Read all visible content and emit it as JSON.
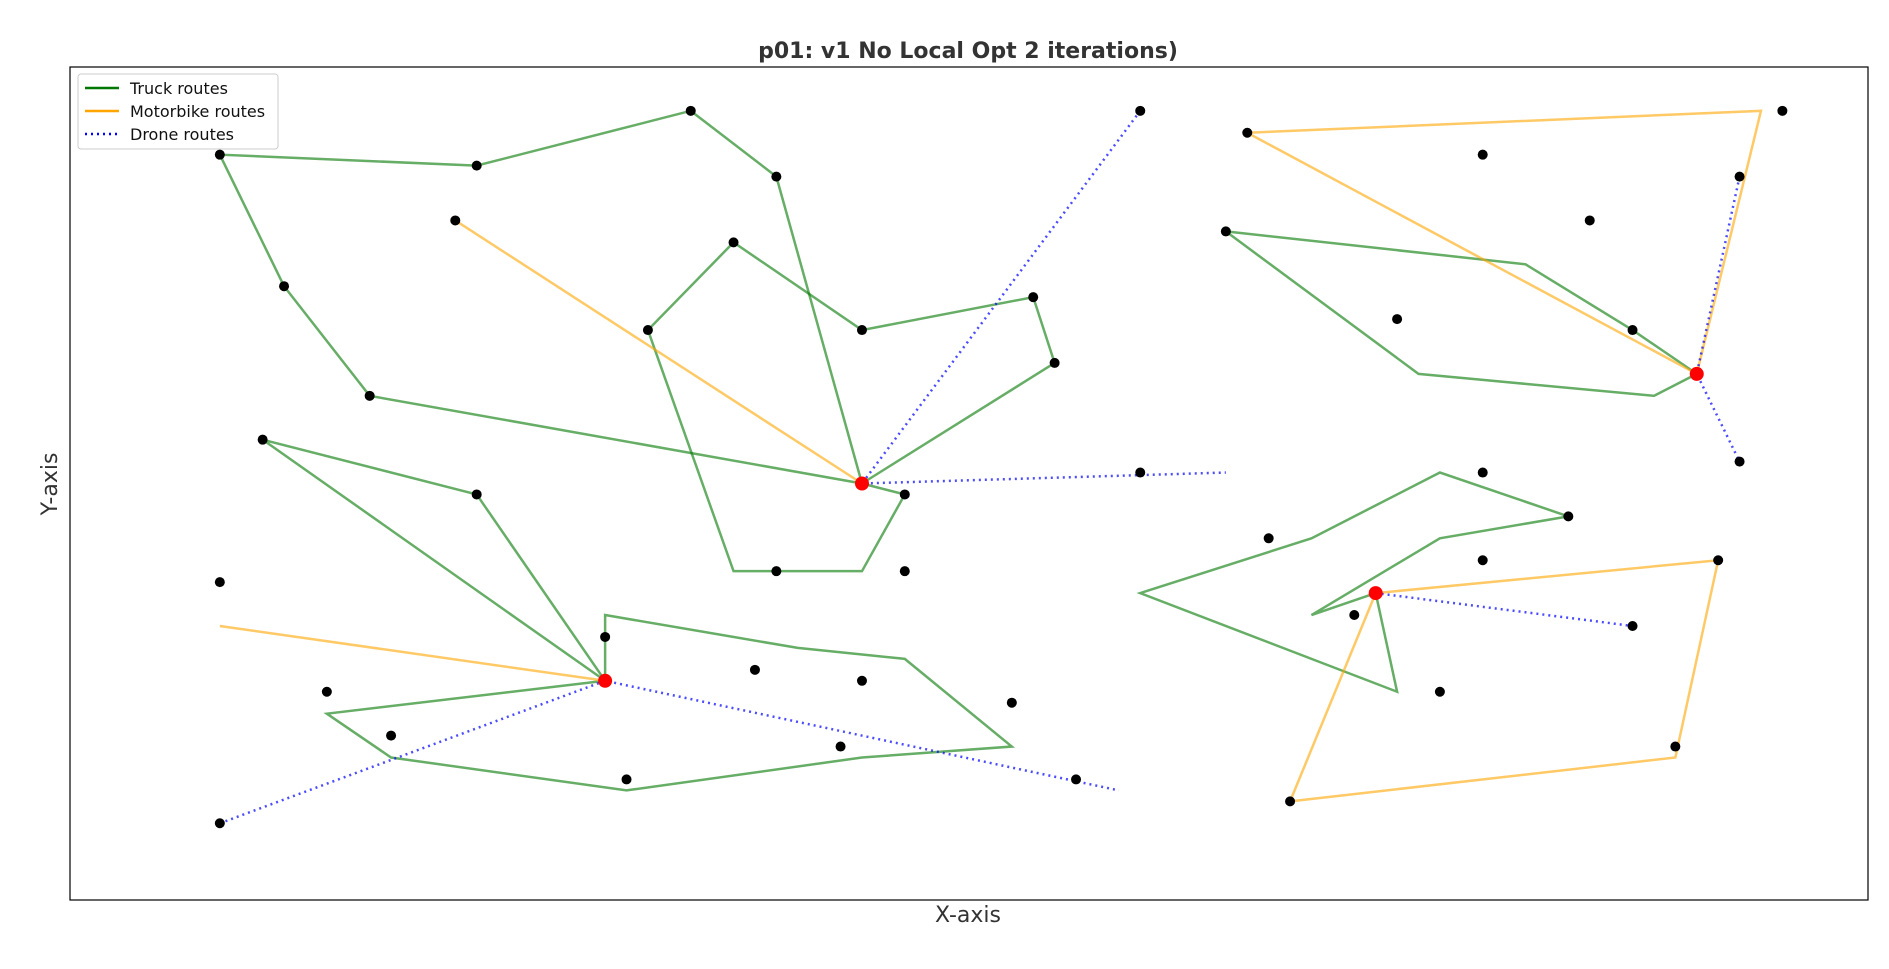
{
  "chart_data": {
    "type": "scatter",
    "title": "p01: v1 No Local Opt 2 iterations)",
    "xlabel": "X-axis",
    "ylabel": "Y-axis",
    "xlim": [
      -6,
      78
    ],
    "ylim": [
      -8,
      68
    ],
    "grid": false,
    "axis_ticks": false,
    "legend": {
      "placement": "top-left",
      "entries": [
        {
          "label": "Truck routes",
          "style": "solid",
          "color": "#007700"
        },
        {
          "label": "Motorbike routes",
          "style": "solid",
          "color": "#FFA500"
        },
        {
          "label": "Drone routes",
          "style": "dotted",
          "color": "#0000FF"
        }
      ]
    },
    "colors": {
      "truck": "#007700",
      "motorbike": "#FFA500",
      "drone": "#0000FF",
      "depot": "#FF0000",
      "customer": "#000000"
    },
    "depots": [
      [
        31,
        30
      ],
      [
        19,
        12
      ],
      [
        70,
        40
      ],
      [
        55,
        20
      ]
    ],
    "customers": [
      [
        1,
        60
      ],
      [
        13,
        59
      ],
      [
        23,
        64
      ],
      [
        27,
        58
      ],
      [
        4,
        48
      ],
      [
        8,
        38
      ],
      [
        12,
        54
      ],
      [
        25,
        52
      ],
      [
        21,
        44
      ],
      [
        31,
        44
      ],
      [
        39,
        47
      ],
      [
        40,
        41
      ],
      [
        33,
        29
      ],
      [
        27,
        22
      ],
      [
        33,
        22
      ],
      [
        44,
        64
      ],
      [
        3,
        34
      ],
      [
        13,
        29
      ],
      [
        1,
        21
      ],
      [
        19,
        16
      ],
      [
        26,
        13
      ],
      [
        31,
        12
      ],
      [
        38,
        10
      ],
      [
        30,
        6
      ],
      [
        20,
        3
      ],
      [
        9,
        7
      ],
      [
        6,
        11
      ],
      [
        1,
        -1
      ],
      [
        41,
        3
      ],
      [
        49,
        62
      ],
      [
        74,
        64
      ],
      [
        60,
        60
      ],
      [
        72,
        58
      ],
      [
        48,
        53
      ],
      [
        65,
        54
      ],
      [
        56,
        45
      ],
      [
        67,
        44
      ],
      [
        72,
        32
      ],
      [
        44,
        31
      ],
      [
        60,
        31
      ],
      [
        50,
        25
      ],
      [
        64,
        27
      ],
      [
        60,
        23
      ],
      [
        71,
        23
      ],
      [
        54,
        18
      ],
      [
        67,
        17
      ],
      [
        58,
        11
      ],
      [
        69,
        6
      ],
      [
        51,
        1
      ]
    ],
    "routes": [
      {
        "mode": "truck",
        "path": [
          [
            31,
            30
          ],
          [
            8,
            38
          ],
          [
            4,
            48
          ],
          [
            1,
            60
          ],
          [
            13,
            59
          ],
          [
            23,
            64
          ],
          [
            27,
            58
          ],
          [
            31,
            30
          ]
        ]
      },
      {
        "mode": "truck",
        "path": [
          [
            31,
            30
          ],
          [
            40,
            41
          ],
          [
            39,
            47
          ],
          [
            31,
            44
          ],
          [
            25,
            52
          ],
          [
            21,
            44
          ],
          [
            25,
            22
          ],
          [
            31,
            22
          ],
          [
            33,
            29
          ],
          [
            31,
            30
          ]
        ]
      },
      {
        "mode": "motorbike",
        "path": [
          [
            31,
            30
          ],
          [
            12,
            54
          ]
        ]
      },
      {
        "mode": "drone",
        "path": [
          [
            44,
            64
          ],
          [
            31,
            30
          ],
          [
            48,
            31
          ]
        ]
      },
      {
        "mode": "truck",
        "path": [
          [
            19,
            12
          ],
          [
            3,
            34
          ],
          [
            13,
            29
          ],
          [
            19,
            12
          ]
        ]
      },
      {
        "mode": "truck",
        "path": [
          [
            19,
            12
          ],
          [
            6,
            9
          ],
          [
            9,
            5
          ],
          [
            20,
            2
          ],
          [
            31,
            5
          ],
          [
            38,
            6
          ],
          [
            33,
            14
          ],
          [
            28,
            15
          ],
          [
            19,
            18
          ],
          [
            19,
            12
          ]
        ]
      },
      {
        "mode": "motorbike",
        "path": [
          [
            19,
            12
          ],
          [
            1,
            17
          ]
        ]
      },
      {
        "mode": "drone",
        "path": [
          [
            1,
            -1
          ],
          [
            19,
            12
          ],
          [
            43,
            2
          ]
        ]
      },
      {
        "mode": "truck",
        "path": [
          [
            70,
            40
          ],
          [
            67,
            44
          ],
          [
            62,
            50
          ],
          [
            48,
            53
          ],
          [
            57,
            40
          ],
          [
            68,
            38
          ],
          [
            70,
            40
          ]
        ]
      },
      {
        "mode": "motorbike",
        "path": [
          [
            70,
            40
          ],
          [
            49,
            62
          ],
          [
            73,
            64
          ],
          [
            70,
            40
          ]
        ]
      },
      {
        "mode": "drone",
        "path": [
          [
            72,
            58
          ],
          [
            70,
            40
          ],
          [
            72,
            32
          ]
        ]
      },
      {
        "mode": "truck",
        "path": [
          [
            55,
            20
          ],
          [
            52,
            18
          ],
          [
            58,
            25
          ],
          [
            64,
            27
          ],
          [
            58,
            31
          ],
          [
            52,
            25
          ],
          [
            44,
            20
          ],
          [
            56,
            11
          ],
          [
            55,
            20
          ]
        ]
      },
      {
        "mode": "motorbike",
        "path": [
          [
            55,
            20
          ],
          [
            71,
            23
          ],
          [
            69,
            5
          ],
          [
            51,
            1
          ],
          [
            55,
            20
          ]
        ]
      },
      {
        "mode": "drone",
        "path": [
          [
            55,
            20
          ],
          [
            67,
            17
          ]
        ]
      }
    ]
  }
}
